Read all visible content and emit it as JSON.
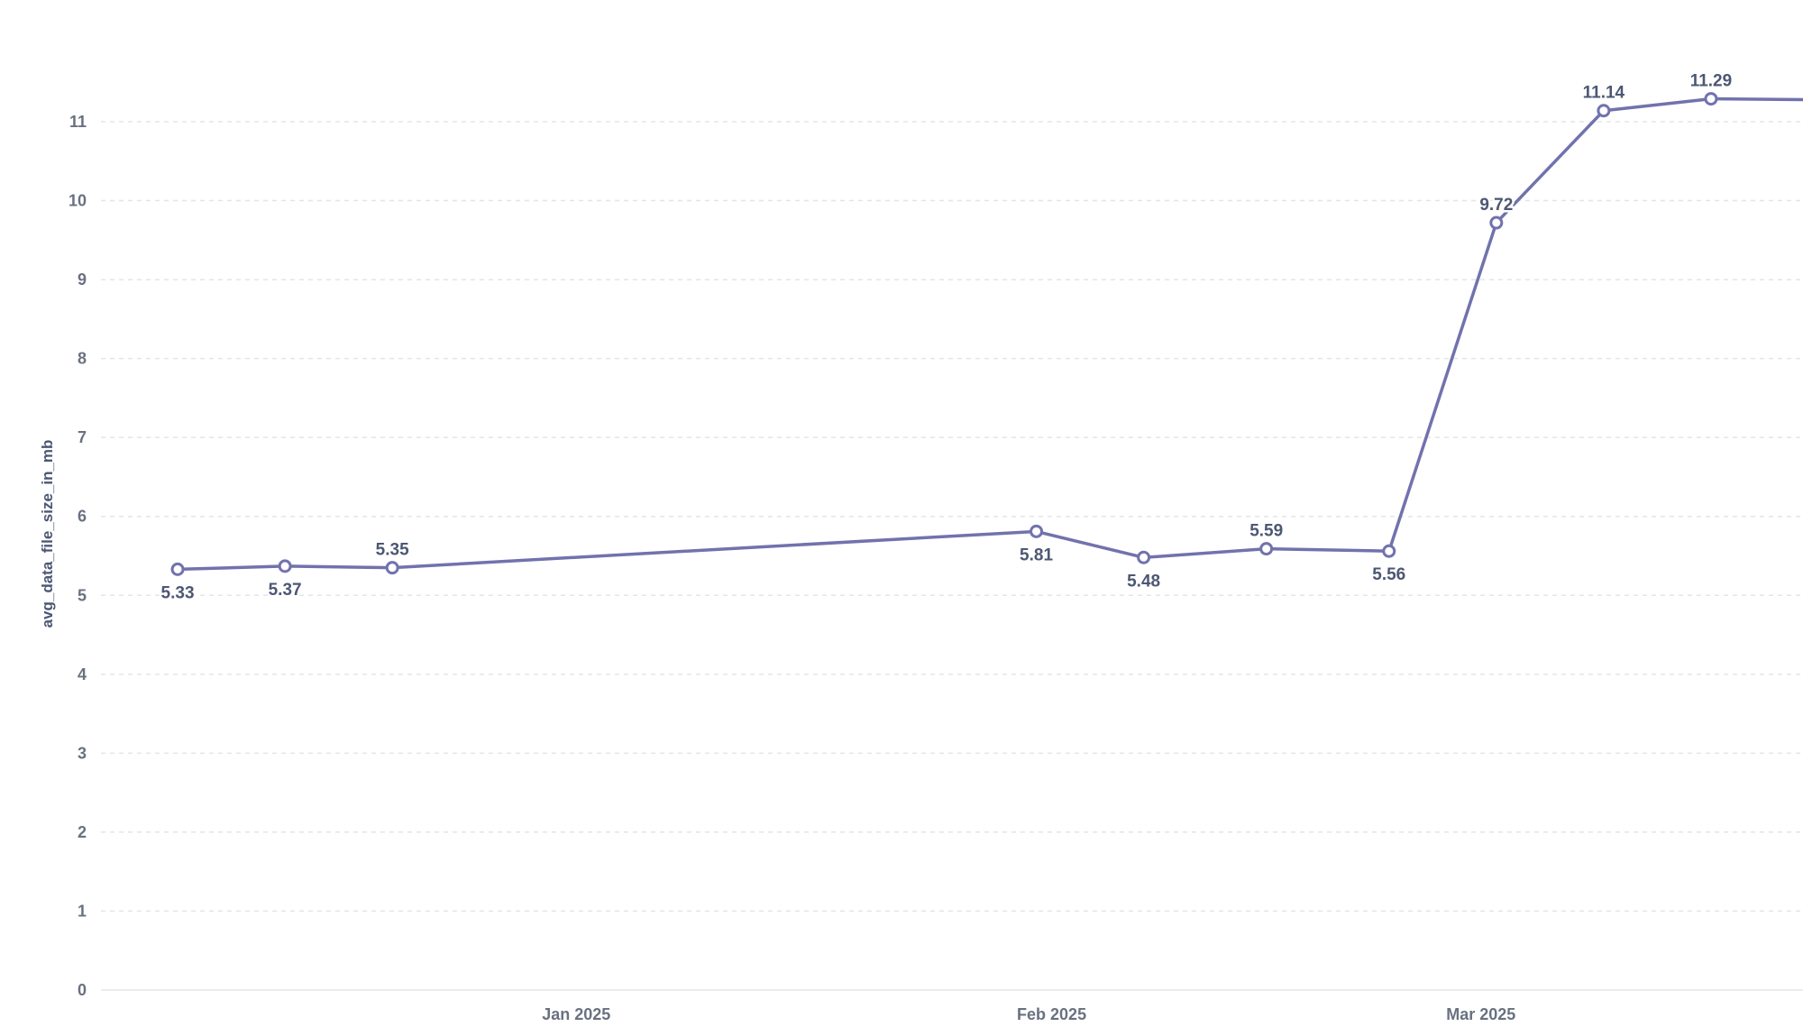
{
  "chart_data": {
    "type": "line",
    "title": "",
    "xlabel": "",
    "ylabel": "avg_data_file_size_in_mb",
    "ylim": [
      0,
      11
    ],
    "yticks": [
      0,
      1,
      2,
      3,
      4,
      5,
      6,
      7,
      8,
      9,
      10,
      11
    ],
    "xlim": [
      "2024-12-01",
      "2025-03-22"
    ],
    "xticks": [
      {
        "date": "2025-01-01",
        "label": "Jan 2025"
      },
      {
        "date": "2025-02-01",
        "label": "Feb 2025"
      },
      {
        "date": "2025-03-01",
        "label": "Mar 2025"
      }
    ],
    "grid": true,
    "legend": "none",
    "color": "#7172ad",
    "series": [
      {
        "name": "",
        "points": [
          {
            "x": "2024-12-06",
            "y": 5.33,
            "label": "5.33",
            "label_pos": "below"
          },
          {
            "x": "2024-12-13",
            "y": 5.37,
            "label": "5.37",
            "label_pos": "below"
          },
          {
            "x": "2024-12-20",
            "y": 5.35,
            "label": "5.35",
            "label_pos": "above"
          },
          {
            "x": "2025-01-31",
            "y": 5.81,
            "label": "5.81",
            "label_pos": "below"
          },
          {
            "x": "2025-02-07",
            "y": 5.48,
            "label": "5.48",
            "label_pos": "below"
          },
          {
            "x": "2025-02-15",
            "y": 5.59,
            "label": "5.59",
            "label_pos": "above"
          },
          {
            "x": "2025-02-23",
            "y": 5.56,
            "label": "5.56",
            "label_pos": "below"
          },
          {
            "x": "2025-03-02",
            "y": 9.72,
            "label": "9.72",
            "label_pos": "above"
          },
          {
            "x": "2025-03-09",
            "y": 11.14,
            "label": "11.14",
            "label_pos": "above"
          },
          {
            "x": "2025-03-16",
            "y": 11.29,
            "label": "11.29",
            "label_pos": "above"
          },
          {
            "x": "2025-03-22",
            "y": 11.28,
            "label": "",
            "label_pos": "none"
          }
        ]
      }
    ]
  }
}
